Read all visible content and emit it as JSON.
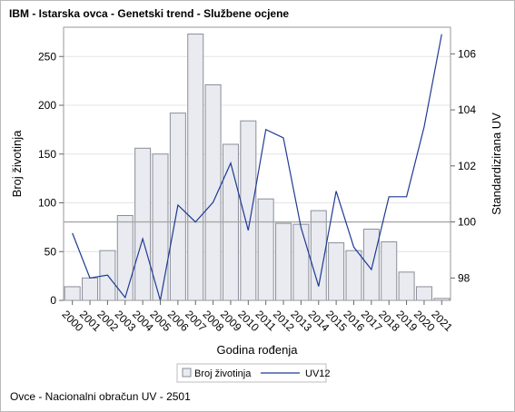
{
  "title": "IBM - Istarska ovca - Genetski trend - Službene ocjene",
  "footer": "Ovce - Nacionalni obračun UV - 2501",
  "chart_data": {
    "type": "bar+line",
    "categories": [
      "2000",
      "2001",
      "2002",
      "2003",
      "2004",
      "2005",
      "2006",
      "2007",
      "2008",
      "2009",
      "2010",
      "2011",
      "2012",
      "2013",
      "2014",
      "2015",
      "2016",
      "2017",
      "2018",
      "2019",
      "2020",
      "2021"
    ],
    "series": [
      {
        "name": "Broj životinja",
        "type": "bar",
        "axis": "left",
        "values": [
          14,
          23,
          51,
          87,
          156,
          150,
          192,
          273,
          221,
          160,
          184,
          104,
          79,
          78,
          92,
          59,
          51,
          73,
          60,
          29,
          14,
          2
        ]
      },
      {
        "name": "UV12",
        "type": "line",
        "axis": "right",
        "values": [
          99.6,
          98.0,
          98.1,
          97.3,
          99.4,
          97.2,
          100.6,
          100.0,
          100.7,
          102.1,
          99.7,
          103.3,
          103.0,
          99.8,
          97.7,
          101.1,
          99.1,
          98.3,
          100.9,
          100.9,
          103.4,
          106.7
        ]
      }
    ],
    "xlabel": "Godina rođenja",
    "ylabel": "Broj životinja",
    "y2label": "Standardizirana UV",
    "ylim": [
      0,
      280
    ],
    "y2lim": [
      97.2,
      106.95
    ],
    "yticks": [
      0,
      50,
      100,
      150,
      200,
      250
    ],
    "y2ticks": [
      98,
      100,
      102,
      104,
      106
    ],
    "reference_line_y2": 100,
    "grid": true,
    "legend_position": "bottom-center",
    "colors": {
      "bar_fill": "#e9ebf1",
      "bar_stroke": "#8a8e99",
      "line": "#1f3a93",
      "reference": "#a6a6a6",
      "grid": "#e4e4e4"
    }
  }
}
